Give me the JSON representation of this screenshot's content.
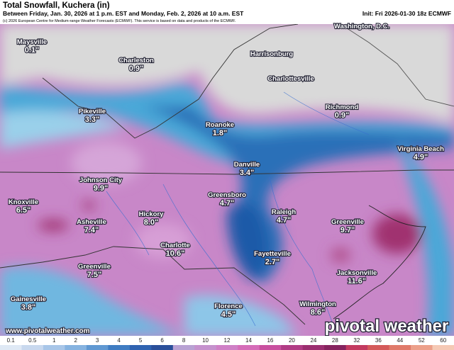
{
  "header": {
    "title": "Total Snowfall, Kuchera (in)",
    "subtitle": "Between Friday, Jan. 30, 2026 at 1 p.m. EST and Monday, Feb. 2, 2026 at 10 a.m. EST",
    "init": "Init: Fri 2026-01-30 18z ECMWF",
    "copyright": "(c) 2026 European Centre for Medium-range Weather Forecasts (ECMWF). This service is based on data and products of the ECMWF."
  },
  "cities": [
    {
      "name": "Maysville",
      "value": "0.1\""
    },
    {
      "name": "Charleston",
      "value": "0.9\""
    },
    {
      "name": "Washington, D.C."
    },
    {
      "name": "Harrisonburg"
    },
    {
      "name": "Charlottesville"
    },
    {
      "name": "Richmond",
      "value": "0.9\""
    },
    {
      "name": "Pikeville",
      "value": "3.3\""
    },
    {
      "name": "Roanoke",
      "value": "1.8\""
    },
    {
      "name": "Virginia Beach",
      "value": "4.9\""
    },
    {
      "name": "Danville",
      "value": "3.4\""
    },
    {
      "name": "Johnson City",
      "value": "9.9\""
    },
    {
      "name": "Greensboro",
      "value": "4.7\""
    },
    {
      "name": "Knoxville",
      "value": "6.5\""
    },
    {
      "name": "Raleigh",
      "value": "4.7\""
    },
    {
      "name": "Hickory",
      "value": "8.0\""
    },
    {
      "name": "Asheville",
      "value": "7.4\""
    },
    {
      "name": "Greenville",
      "value": "9.7\""
    },
    {
      "name": "Charlotte",
      "value": "10.6\""
    },
    {
      "name": "Fayetteville",
      "value": "2.7\""
    },
    {
      "name": "Jacksonville",
      "value": "11.6\""
    },
    {
      "name": "Greenville",
      "value": "7.5\""
    },
    {
      "name": "Gainesville",
      "value": "3.8\""
    },
    {
      "name": "Florence",
      "value": "4.5\""
    },
    {
      "name": "Wilmington",
      "value": "8.6\""
    }
  ],
  "colorbar": {
    "labels": [
      "0.1",
      "0.5",
      "1",
      "2",
      "3",
      "4",
      "5",
      "6",
      "8",
      "10",
      "12",
      "14",
      "16",
      "20",
      "24",
      "28",
      "32",
      "36",
      "44",
      "52",
      "60"
    ]
  },
  "watermark": {
    "url": "www.pivotalweather.com",
    "brand": "pivotal weather"
  }
}
